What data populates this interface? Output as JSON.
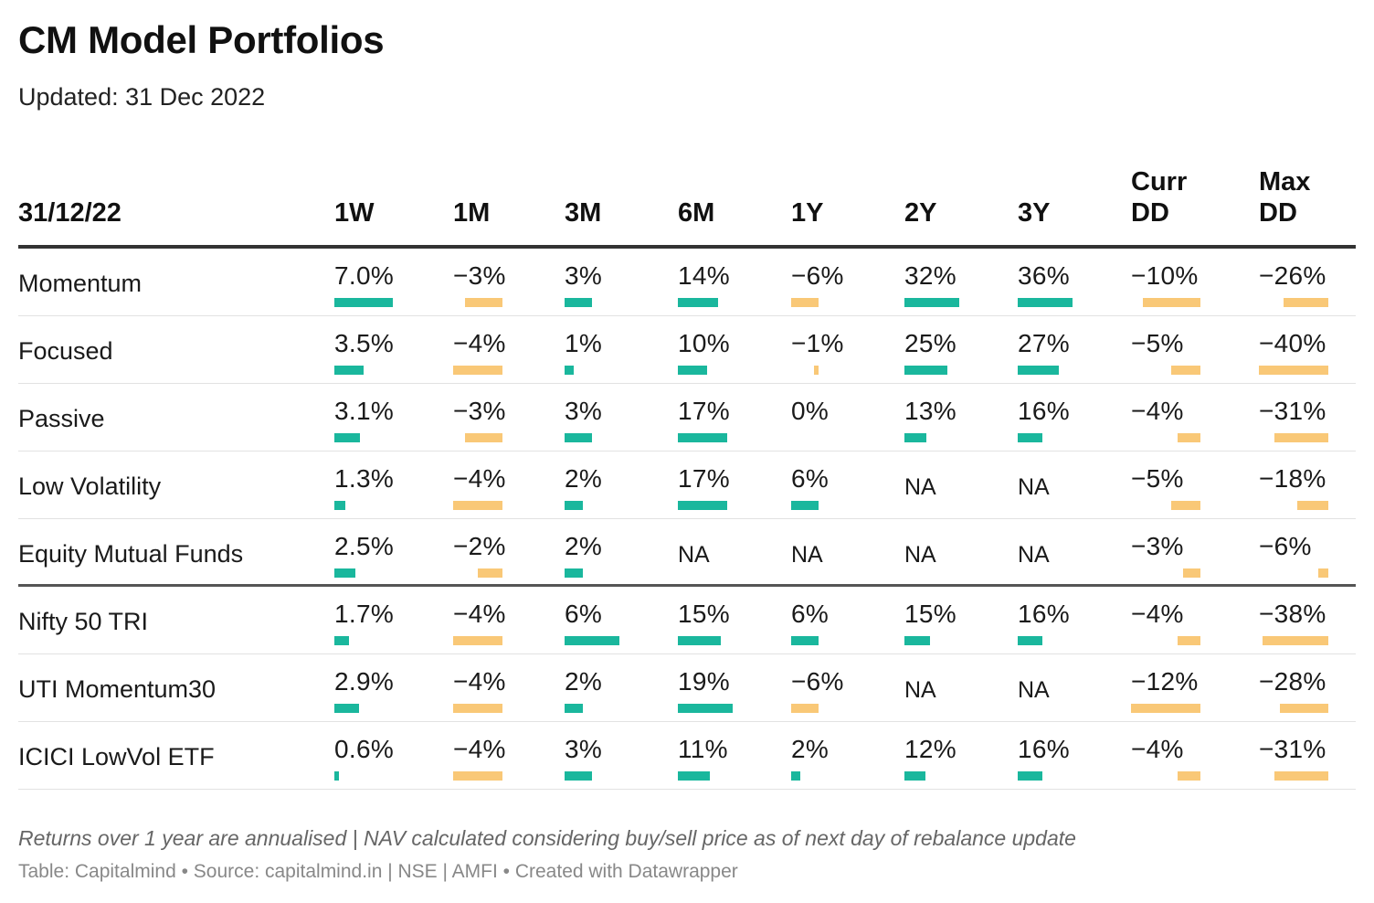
{
  "title": "CM Model Portfolios",
  "subtitle": "Updated: 31 Dec 2022",
  "notes": "Returns over 1 year are annualised | NAV calculated considering buy/sell price as of next day of rebalance update",
  "footer": "Table: Capitalmind • Source: capitalmind.in | NSE | AMFI • Created with Datawrapper",
  "colors": {
    "positive_bar": "#1ab79d",
    "negative_bar": "#f9c877",
    "rule": "#333333"
  },
  "chart_data": {
    "type": "table",
    "header_label": "31/12/22",
    "columns": [
      "1W",
      "1M",
      "3M",
      "6M",
      "1Y",
      "2Y",
      "3Y",
      "Curr\nDD",
      "Max\nDD"
    ],
    "rows": [
      {
        "label": "Momentum",
        "values": [
          "7.0%",
          "−3%",
          "3%",
          "14%",
          "−6%",
          "32%",
          "36%",
          "−10%",
          "−26%"
        ]
      },
      {
        "label": "Focused",
        "values": [
          "3.5%",
          "−4%",
          "1%",
          "10%",
          "−1%",
          "25%",
          "27%",
          "−5%",
          "−40%"
        ]
      },
      {
        "label": "Passive",
        "values": [
          "3.1%",
          "−3%",
          "3%",
          "17%",
          "0%",
          "13%",
          "16%",
          "−4%",
          "−31%"
        ]
      },
      {
        "label": "Low Volatility",
        "values": [
          "1.3%",
          "−4%",
          "2%",
          "17%",
          "6%",
          "NA",
          "NA",
          "−5%",
          "−18%"
        ]
      },
      {
        "label": "Equity Mutual Funds",
        "values": [
          "2.5%",
          "−2%",
          "2%",
          "NA",
          "NA",
          "NA",
          "NA",
          "−3%",
          "−6%"
        ]
      },
      {
        "label": "Nifty 50 TRI",
        "values": [
          "1.7%",
          "−4%",
          "6%",
          "15%",
          "6%",
          "15%",
          "16%",
          "−4%",
          "−38%"
        ]
      },
      {
        "label": "UTI Momentum30",
        "values": [
          "2.9%",
          "−4%",
          "2%",
          "19%",
          "−6%",
          "NA",
          "NA",
          "−12%",
          "−28%"
        ]
      },
      {
        "label": "ICICI LowVol ETF",
        "values": [
          "0.6%",
          "−4%",
          "3%",
          "11%",
          "2%",
          "12%",
          "16%",
          "−4%",
          "−31%"
        ]
      }
    ],
    "separator_after_row": 4
  }
}
